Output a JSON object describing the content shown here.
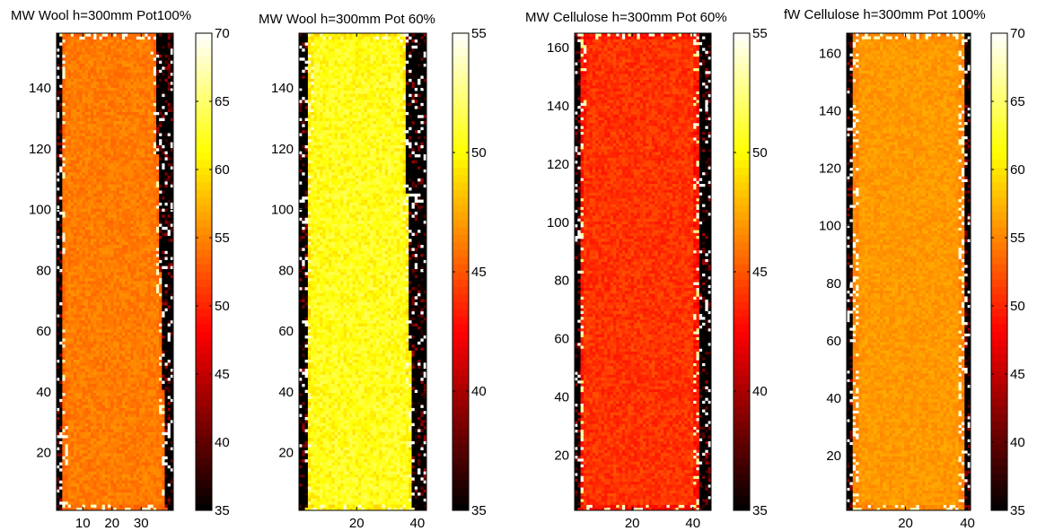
{
  "figure": {
    "colormap": "hot",
    "colors": {
      "background": "#ffffff",
      "axis": "#000000"
    }
  },
  "chart_data": [
    {
      "type": "heatmap",
      "title": "MW Wool h=300mm Pot100%",
      "xlabel": "",
      "ylabel": "",
      "x_ticks": [
        10,
        20,
        30
      ],
      "y_ticks": [
        20,
        40,
        60,
        80,
        100,
        120,
        140
      ],
      "xlim": [
        1,
        41
      ],
      "ylim": [
        1,
        158
      ],
      "colorbar": {
        "min": 35,
        "max": 70,
        "ticks": [
          35,
          40,
          45,
          50,
          55,
          60,
          65,
          70
        ]
      },
      "field": {
        "interior_mean": 54.5,
        "noise": 1.2,
        "edge_pattern": "bright speckles at lower-left and top-right corners, dark region along upper-right edge",
        "strip": {
          "bottom_left": 3,
          "bottom_right": 39,
          "top_left": 2,
          "top_right": 35
        }
      }
    },
    {
      "type": "heatmap",
      "title": "MW Wool h=300mm Pot 60%",
      "xlabel": "",
      "ylabel": "",
      "x_ticks": [
        20,
        40
      ],
      "y_ticks": [
        20,
        40,
        60,
        80,
        100,
        120,
        140
      ],
      "xlim": [
        1,
        43
      ],
      "ylim": [
        1,
        158
      ],
      "colorbar": {
        "min": 35,
        "max": 55,
        "ticks": [
          35,
          40,
          45,
          50,
          55
        ]
      },
      "field": {
        "interior_mean": 50.5,
        "noise": 1.3,
        "edge_pattern": "dark borders with bright speckles along edges",
        "strip": {
          "bottom_left": 3,
          "bottom_right": 39,
          "top_left": 4,
          "top_right": 36
        }
      }
    },
    {
      "type": "heatmap",
      "title": "MW Cellulose h=300mm Pot 60%",
      "xlabel": "",
      "ylabel": "",
      "x_ticks": [
        20,
        40
      ],
      "y_ticks": [
        20,
        40,
        60,
        80,
        100,
        120,
        140,
        160
      ],
      "xlim": [
        1,
        46
      ],
      "ylim": [
        1,
        165
      ],
      "colorbar": {
        "min": 35,
        "max": 55,
        "ticks": [
          35,
          40,
          45,
          50,
          55
        ]
      },
      "field": {
        "interior_mean": 44.0,
        "noise": 0.9,
        "edge_pattern": "dark margins with bright speckles on left and right edges",
        "strip": {
          "bottom_left": 2,
          "bottom_right": 42,
          "top_left": 3,
          "top_right": 42
        }
      }
    },
    {
      "type": "heatmap",
      "title": "fW Cellulose h=300mm Pot 100%",
      "xlabel": "",
      "ylabel": "",
      "x_ticks": [
        20,
        40
      ],
      "y_ticks": [
        20,
        40,
        60,
        80,
        100,
        120,
        140,
        160
      ],
      "xlim": [
        1,
        41
      ],
      "ylim": [
        1,
        167
      ],
      "colorbar": {
        "min": 35,
        "max": 70,
        "ticks": [
          35,
          40,
          45,
          50,
          55,
          60,
          65,
          70
        ]
      },
      "field": {
        "interior_mean": 56.0,
        "noise": 1.0,
        "edge_pattern": "dark strip on left edge, bright speckles along left edge",
        "strip": {
          "bottom_left": 3,
          "bottom_right": 39,
          "top_left": 3,
          "top_right": 39
        }
      }
    }
  ]
}
